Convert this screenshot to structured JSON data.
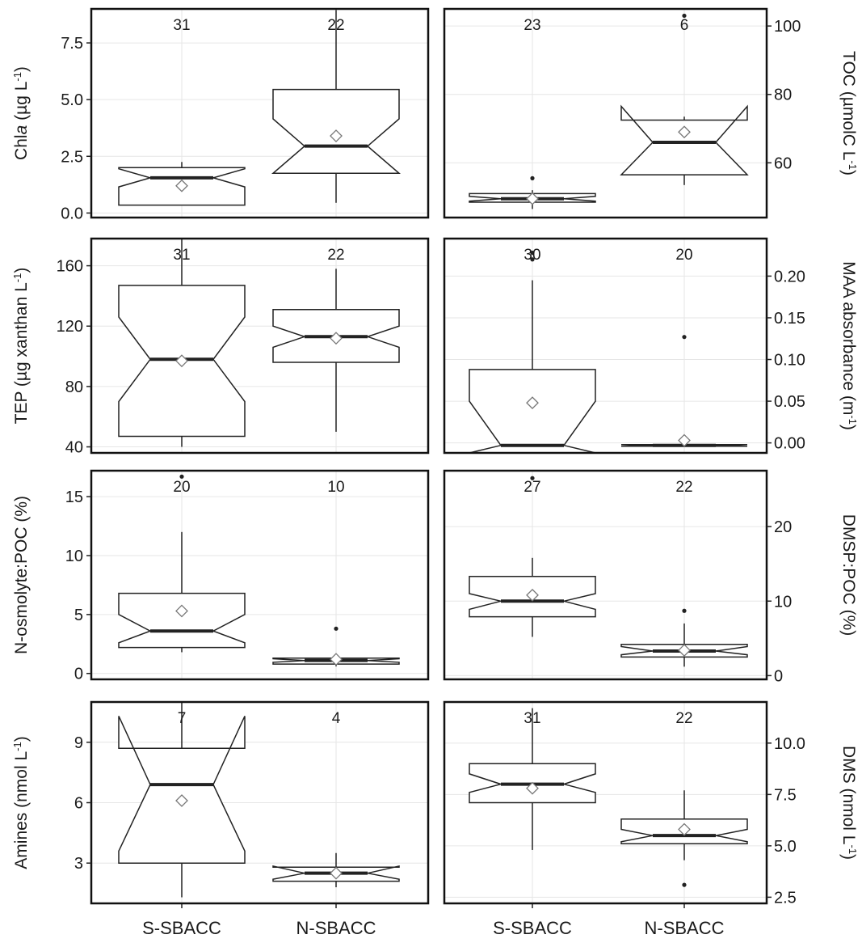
{
  "figure": {
    "x_categories": [
      "S-SBACC",
      "N-SBACC"
    ]
  },
  "chart_data": [
    {
      "type": "box",
      "ylabel": "Chla (µg L⁻¹)",
      "ylabel_parts": [
        "Chl",
        "a",
        " (µg L",
        "-1",
        ")"
      ],
      "ylim": [
        -0.2,
        9.0
      ],
      "yticks": [
        0.0,
        2.5,
        5.0,
        7.5
      ],
      "ytick_labels": [
        "0.0",
        "2.5",
        "5.0",
        "7.5"
      ],
      "boxes": [
        {
          "category": "S-SBACC",
          "n": 31,
          "whisker_low": 0.35,
          "q1": 0.35,
          "median": 1.55,
          "q3": 2.0,
          "whisker_high": 2.25,
          "notch_low": 1.15,
          "notch_high": 1.95,
          "mean": 1.2,
          "outliers": []
        },
        {
          "category": "N-SBACC",
          "n": 22,
          "whisker_low": 0.45,
          "q1": 1.75,
          "median": 2.95,
          "q3": 5.45,
          "whisker_high": 8.95,
          "notch_low": 1.75,
          "notch_high": 4.15,
          "mean": 3.4,
          "outliers": []
        }
      ]
    },
    {
      "type": "box",
      "ylabel": "TOC (µmolC L⁻¹)",
      "ylabel_parts": [
        "TOC (µmolC L",
        "-1",
        ")"
      ],
      "ylim": [
        44,
        105
      ],
      "yticks": [
        60,
        80,
        100
      ],
      "ytick_labels": [
        "60",
        "80",
        "100"
      ],
      "boxes": [
        {
          "category": "S-SBACC",
          "n": 23,
          "whisker_low": 46.5,
          "q1": 48.5,
          "median": 49.5,
          "q3": 51.0,
          "whisker_high": 52.0,
          "notch_low": 48.8,
          "notch_high": 50.2,
          "mean": 49.5,
          "outliers": [
            55.5
          ]
        },
        {
          "category": "N-SBACC",
          "n": 6,
          "whisker_low": 53.5,
          "q1": 56.5,
          "median": 66.0,
          "q3": 72.5,
          "whisker_high": 73.5,
          "notch_low": 56.5,
          "notch_high": 76.5,
          "mean": 69.0,
          "outliers": [
            103.0
          ]
        }
      ]
    },
    {
      "type": "box",
      "ylabel": "TEP (µg xanthan L⁻¹)",
      "ylabel_parts": [
        "TEP (µg xanthan L",
        "-1",
        ")"
      ],
      "ylim": [
        36,
        178
      ],
      "yticks": [
        40,
        80,
        120,
        160
      ],
      "ytick_labels": [
        "40",
        "80",
        "120",
        "160"
      ],
      "boxes": [
        {
          "category": "S-SBACC",
          "n": 31,
          "whisker_low": 40.0,
          "q1": 47.0,
          "median": 98.0,
          "q3": 147.0,
          "whisker_high": 178.0,
          "notch_low": 70.0,
          "notch_high": 126.0,
          "mean": 97.0,
          "outliers": []
        },
        {
          "category": "N-SBACC",
          "n": 22,
          "whisker_low": 50.0,
          "q1": 96.0,
          "median": 113.0,
          "q3": 131.0,
          "whisker_high": 158.0,
          "notch_low": 106.0,
          "notch_high": 120.0,
          "mean": 112.0,
          "outliers": []
        }
      ]
    },
    {
      "type": "box",
      "ylabel": "MAA absorbance (m⁻¹)",
      "ylabel_parts": [
        "MAA absorbance (m",
        "-1",
        ")"
      ],
      "ylim": [
        -0.012,
        0.245
      ],
      "yticks": [
        0.0,
        0.05,
        0.1,
        0.15,
        0.2
      ],
      "ytick_labels": [
        "0.00",
        "0.05",
        "0.10",
        "0.15",
        "0.20"
      ],
      "boxes": [
        {
          "category": "S-SBACC",
          "n": 30,
          "whisker_low": -0.012,
          "q1": -0.012,
          "median": -0.003,
          "q3": 0.088,
          "whisker_high": 0.195,
          "notch_low": -0.012,
          "notch_high": 0.05,
          "mean": 0.048,
          "outliers": [
            0.22,
            0.228
          ]
        },
        {
          "category": "N-SBACC",
          "n": 20,
          "whisker_low": -0.004,
          "q1": -0.004,
          "median": -0.003,
          "q3": -0.002,
          "whisker_high": -0.002,
          "notch_low": -0.004,
          "notch_high": -0.002,
          "mean": 0.003,
          "outliers": [
            0.127
          ]
        }
      ]
    },
    {
      "type": "box",
      "ylabel": "N-osmolyte:POC (%)",
      "ylabel_parts": [
        "N-osmolyte:POC (%)"
      ],
      "ylim": [
        -0.5,
        17.2
      ],
      "yticks": [
        0,
        5,
        10,
        15
      ],
      "ytick_labels": [
        "0",
        "5",
        "10",
        "15"
      ],
      "boxes": [
        {
          "category": "S-SBACC",
          "n": 20,
          "whisker_low": 1.8,
          "q1": 2.2,
          "median": 3.6,
          "q3": 6.8,
          "whisker_high": 12.0,
          "notch_low": 2.6,
          "notch_high": 5.0,
          "mean": 5.3,
          "outliers": [
            16.7
          ]
        },
        {
          "category": "N-SBACC",
          "n": 10,
          "whisker_low": 0.6,
          "q1": 0.8,
          "median": 1.1,
          "q3": 1.3,
          "whisker_high": 1.5,
          "notch_low": 0.95,
          "notch_high": 1.25,
          "mean": 1.2,
          "outliers": [
            3.8
          ]
        }
      ]
    },
    {
      "type": "box",
      "ylabel": "DMSP:POC (%)",
      "ylabel_parts": [
        "DMSP:POC (%)"
      ],
      "ylim": [
        -0.5,
        27.5
      ],
      "yticks": [
        0,
        10,
        20
      ],
      "ytick_labels": [
        "0",
        "10",
        "20"
      ],
      "boxes": [
        {
          "category": "S-SBACC",
          "n": 27,
          "whisker_low": 5.2,
          "q1": 7.9,
          "median": 10.0,
          "q3": 13.3,
          "whisker_high": 15.8,
          "notch_low": 8.9,
          "notch_high": 11.0,
          "mean": 10.8,
          "outliers": [
            26.5
          ]
        },
        {
          "category": "N-SBACC",
          "n": 22,
          "whisker_low": 1.2,
          "q1": 2.5,
          "median": 3.3,
          "q3": 4.2,
          "whisker_high": 7.0,
          "notch_low": 2.8,
          "notch_high": 3.9,
          "mean": 3.4,
          "outliers": [
            8.7
          ]
        }
      ]
    },
    {
      "type": "box",
      "ylabel": "Amines (nmol L⁻¹)",
      "ylabel_parts": [
        "Amines (nmol L",
        "-1",
        ")"
      ],
      "ylim": [
        1.0,
        11.0
      ],
      "yticks": [
        3,
        6,
        9
      ],
      "ytick_labels": [
        "3",
        "6",
        "9"
      ],
      "boxes": [
        {
          "category": "S-SBACC",
          "n": 7,
          "whisker_low": 1.3,
          "q1": 3.0,
          "median": 6.9,
          "q3": 8.7,
          "whisker_high": 11.0,
          "notch_low": 3.6,
          "notch_high": 10.3,
          "mean": 6.1,
          "outliers": []
        },
        {
          "category": "N-SBACC",
          "n": 4,
          "whisker_low": 1.8,
          "q1": 2.1,
          "median": 2.5,
          "q3": 2.8,
          "whisker_high": 3.5,
          "notch_low": 2.2,
          "notch_high": 2.85,
          "mean": 2.5,
          "outliers": []
        }
      ]
    },
    {
      "type": "box",
      "ylabel": "DMS (nmol L⁻¹)",
      "ylabel_parts": [
        "DMS (nmol L",
        "-1",
        ")"
      ],
      "ylim": [
        2.2,
        12.0
      ],
      "yticks": [
        2.5,
        5.0,
        7.5,
        10.0
      ],
      "ytick_labels": [
        "2.5",
        "5.0",
        "7.5",
        "10.0"
      ],
      "boxes": [
        {
          "category": "S-SBACC",
          "n": 31,
          "whisker_low": 4.8,
          "q1": 7.1,
          "median": 8.0,
          "q3": 9.0,
          "whisker_high": 11.7,
          "notch_low": 7.6,
          "notch_high": 8.5,
          "mean": 7.8,
          "outliers": []
        },
        {
          "category": "N-SBACC",
          "n": 22,
          "whisker_low": 4.3,
          "q1": 5.1,
          "median": 5.5,
          "q3": 6.3,
          "whisker_high": 7.7,
          "notch_low": 5.2,
          "notch_high": 5.8,
          "mean": 5.8,
          "outliers": [
            3.1
          ]
        }
      ]
    }
  ]
}
